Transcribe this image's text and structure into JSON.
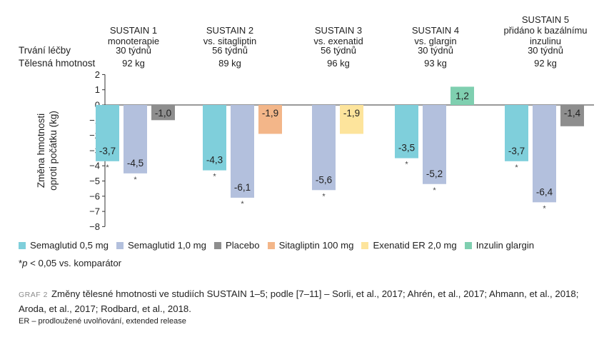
{
  "row_labels": {
    "duration": "Trvání léčby",
    "weight": "Tělesná hmotnost"
  },
  "studies": [
    {
      "name": "SUSTAIN 1",
      "comparator": "monoterapie",
      "duration": "30 týdnů",
      "weight": "92 kg"
    },
    {
      "name": "SUSTAIN 2",
      "comparator": "vs. sitagliptin",
      "duration": "56 týdnů",
      "weight": "89 kg"
    },
    {
      "name": "SUSTAIN 3",
      "comparator": "vs. exenatid",
      "duration": "56 týdnů",
      "weight": "96 kg"
    },
    {
      "name": "SUSTAIN 4",
      "comparator": "vs. glargin",
      "duration": "30 týdnů",
      "weight": "93 kg"
    },
    {
      "name": "SUSTAIN 5",
      "comparator": "přidáno k bazálnímu inzulinu",
      "duration": "30 týdnů",
      "weight": "92 kg"
    }
  ],
  "chart_data": {
    "type": "bar",
    "ylabel": "Změna hmotnosti oproti počátku (kg)",
    "ylim": [
      -8,
      2
    ],
    "yticks": [
      2,
      1,
      0,
      -1,
      -2,
      -3,
      -4,
      -5,
      -6,
      -7,
      -8
    ],
    "grid": false,
    "legend_position": "bottom",
    "series": [
      {
        "name": "Semaglutid 0,5 mg",
        "color": "#7fcfdb"
      },
      {
        "name": "Semaglutid 1,0 mg",
        "color": "#b3c0dd"
      },
      {
        "name": "Placebo",
        "color": "#8e8e8e"
      },
      {
        "name": "Sitagliptin 100 mg",
        "color": "#f3b689"
      },
      {
        "name": "Exenatid ER 2,0 mg",
        "color": "#fde49c"
      },
      {
        "name": "Inzulin glargin",
        "color": "#7fcfb0"
      }
    ],
    "groups": [
      {
        "study": "SUSTAIN 1",
        "bars": [
          {
            "series": 0,
            "value": -3.7,
            "label": "-3,7",
            "significant": true
          },
          {
            "series": 1,
            "value": -4.5,
            "label": "-4,5",
            "significant": true
          },
          {
            "series": 2,
            "value": -1.0,
            "label": "-1,0",
            "significant": false
          }
        ]
      },
      {
        "study": "SUSTAIN 2",
        "bars": [
          {
            "series": 0,
            "value": -4.3,
            "label": "-4,3",
            "significant": true
          },
          {
            "series": 1,
            "value": -6.1,
            "label": "-6,1",
            "significant": true
          },
          {
            "series": 3,
            "value": -1.9,
            "label": "-1,9",
            "significant": false
          }
        ]
      },
      {
        "study": "SUSTAIN 3",
        "bars": [
          {
            "series": 1,
            "value": -5.6,
            "label": "-5,6",
            "significant": true
          },
          {
            "series": 4,
            "value": -1.9,
            "label": "-1,9",
            "significant": false
          }
        ]
      },
      {
        "study": "SUSTAIN 4",
        "bars": [
          {
            "series": 0,
            "value": -3.5,
            "label": "-3,5",
            "significant": true
          },
          {
            "series": 1,
            "value": -5.2,
            "label": "-5,2",
            "significant": true
          },
          {
            "series": 5,
            "value": 1.2,
            "label": "1,2",
            "significant": false
          }
        ]
      },
      {
        "study": "SUSTAIN 5",
        "bars": [
          {
            "series": 0,
            "value": -3.7,
            "label": "-3,7",
            "significant": true
          },
          {
            "series": 1,
            "value": -6.4,
            "label": "-6,4",
            "significant": true
          },
          {
            "series": 2,
            "value": -1.4,
            "label": "-1,4",
            "significant": false
          }
        ]
      }
    ],
    "significance_marker": "*"
  },
  "footnote": {
    "symbol": "*",
    "p": "p",
    "text": " < 0,05 vs. komparátor"
  },
  "caption": {
    "label": "GRAF 2",
    "text": "Změny tělesné hmotnosti ve studiích SUSTAIN 1–5; podle [7–11] – Sorli, et al., 2017; Ahrén, et al., 2017; Ahmann, et al., 2018; Aroda, et al., 2017; Rodbard, et al., 2018."
  },
  "note": "ER – prodloužené uvolňování, extended release"
}
